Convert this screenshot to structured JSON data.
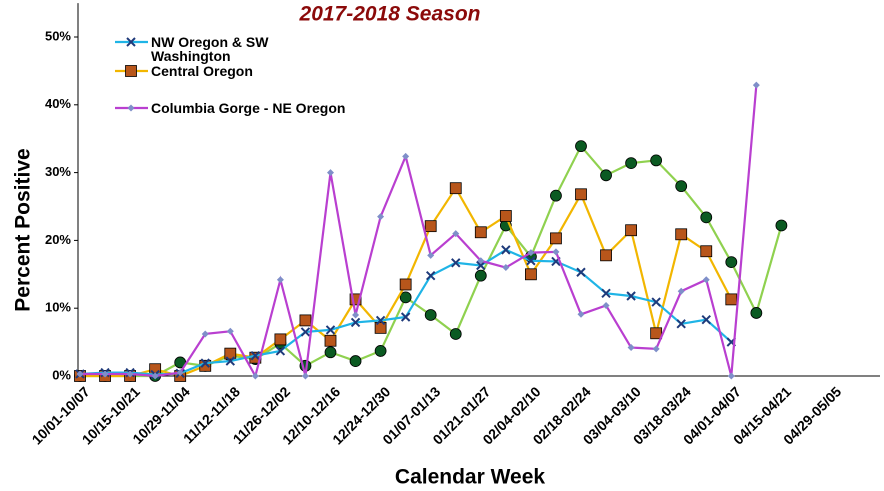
{
  "chart_data": {
    "type": "line",
    "title": "2017-2018 Season",
    "x_label": "Calendar Week",
    "y_label": "Percent Positive",
    "categories": [
      "10/01-10/07",
      null,
      "10/15-10/21",
      null,
      "10/29-11/04",
      null,
      "11/12-11/18",
      null,
      "11/26-12/02",
      null,
      "12/10-12/16",
      null,
      "12/24-12/30",
      null,
      "01/07-01/13",
      null,
      "01/21-01/27",
      null,
      "02/04-02/10",
      null,
      "02/18-02/24",
      null,
      "03/04-03/10",
      null,
      "03/18-03/24",
      null,
      "04/01-04/07",
      null,
      "04/15-04/21",
      null,
      "04/29-05/05",
      null
    ],
    "ylim": [
      0,
      55
    ],
    "yticks": [
      {
        "value": 0,
        "label": "0%"
      },
      {
        "value": 10,
        "label": "10%"
      },
      {
        "value": 20,
        "label": "20%"
      },
      {
        "value": 30,
        "label": "30%"
      },
      {
        "value": 40,
        "label": "40%"
      },
      {
        "value": 50,
        "label": "50%"
      }
    ],
    "grid": false,
    "series": [
      {
        "name": "NW Oregon & SW Washington",
        "color": "#1fb4e6",
        "marker": "x",
        "marker_color": "#1f3a7a",
        "values": [
          0.3,
          0.5,
          0.5,
          0.2,
          0.4,
          1.9,
          2.2,
          3.0,
          3.7,
          6.5,
          6.8,
          7.9,
          8.2,
          8.7,
          14.8,
          16.7,
          16.3,
          18.6,
          17.0,
          16.9,
          15.3,
          12.2,
          11.8,
          10.9,
          7.7,
          8.3,
          5.0,
          null,
          null,
          null,
          null,
          null
        ]
      },
      {
        "name": "Central Oregon",
        "color": "#f2b600",
        "marker": "square",
        "marker_color": "#b8561b",
        "values": [
          0,
          0,
          0,
          1.0,
          0,
          1.5,
          3.3,
          2.7,
          5.4,
          8.2,
          5.2,
          11.3,
          7.1,
          13.5,
          22.1,
          27.7,
          21.2,
          23.6,
          15.0,
          20.3,
          26.8,
          17.8,
          21.5,
          6.3,
          20.9,
          18.4,
          11.3,
          null,
          null,
          null,
          null,
          null
        ]
      },
      {
        "name": "Columbia Gorge - NE Oregon",
        "color": "#b93fd0",
        "marker": "diamond",
        "marker_color": "#7f8fc9",
        "values": [
          0.3,
          0.3,
          0.3,
          0,
          0.5,
          6.2,
          6.6,
          0,
          14.2,
          0,
          30.0,
          9.0,
          23.5,
          32.4,
          17.8,
          21.0,
          17.0,
          16.0,
          18.2,
          18.3,
          9.1,
          10.4,
          4.2,
          4.0,
          12.5,
          14.2,
          0,
          42.9,
          null,
          null,
          null,
          null
        ]
      },
      {
        "color": "#8fd14f",
        "marker": "circle",
        "marker_color": "#0b5a22",
        "values": [
          0,
          0,
          0,
          0,
          2.0,
          1.5,
          3.0,
          2.5,
          4.8,
          1.5,
          3.5,
          2.2,
          3.7,
          11.6,
          9.0,
          6.2,
          14.8,
          22.2,
          17.6,
          26.6,
          33.9,
          29.6,
          31.4,
          31.8,
          28.0,
          23.4,
          16.8,
          9.3,
          22.2,
          null,
          null,
          null
        ]
      }
    ]
  }
}
